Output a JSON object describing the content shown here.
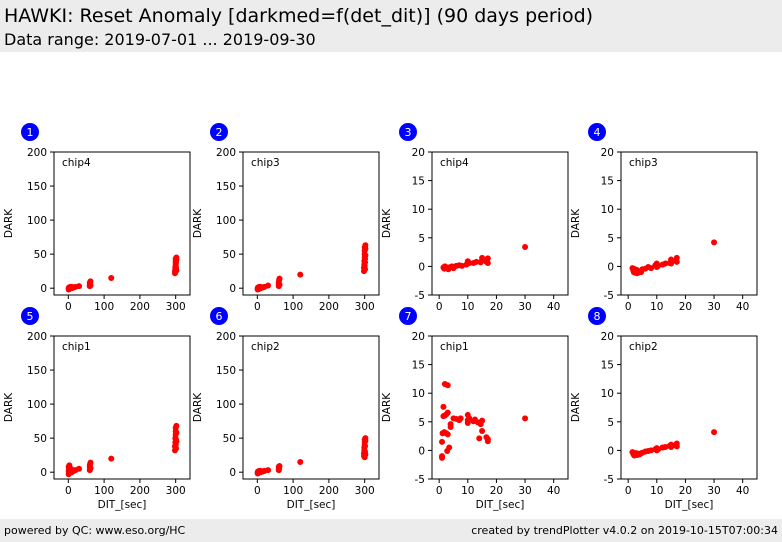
{
  "header": {
    "title": "HAWKI: Reset Anomaly [darkmed=f(det_dit)] (90 days period)",
    "subtitle": "Data range: 2019-07-01 ... 2019-09-30"
  },
  "footer": {
    "left": "powered by QC: www.eso.org/HC",
    "right": "created by trendPlotter v4.0.2 on 2019-10-15T07:00:34"
  },
  "colors": {
    "marker": "#ff0000",
    "badge": "#0000ff",
    "header_bg": "#ececec"
  },
  "chart_data": [
    {
      "id": 1,
      "type": "scatter",
      "label": "chip4",
      "ylabel": "DARK",
      "xlabel": "",
      "xlim": [
        -40,
        340
      ],
      "ylim": [
        -10,
        200
      ],
      "xticks": [
        0,
        100,
        200,
        300
      ],
      "yticks": [
        0,
        50,
        100,
        150,
        200
      ],
      "show_xticklabels": true,
      "x": [
        1,
        1,
        2,
        3,
        3,
        5,
        5,
        10,
        10,
        15,
        20,
        30,
        60,
        60,
        60,
        61,
        62,
        62,
        120,
        298,
        298,
        299,
        299,
        300,
        300,
        300,
        300,
        301,
        301,
        302,
        302,
        302
      ],
      "y": [
        -2,
        0,
        1,
        -1,
        1,
        0,
        2,
        0,
        2,
        1,
        2,
        3,
        3,
        5,
        8,
        6,
        4,
        10,
        15,
        22,
        25,
        28,
        31,
        34,
        37,
        40,
        43,
        30,
        38,
        42,
        45,
        26
      ]
    },
    {
      "id": 2,
      "type": "scatter",
      "label": "chip3",
      "ylabel": "DARK",
      "xlabel": "",
      "xlim": [
        -40,
        340
      ],
      "ylim": [
        -10,
        200
      ],
      "xticks": [
        0,
        100,
        200,
        300
      ],
      "yticks": [
        0,
        50,
        100,
        150,
        200
      ],
      "show_xticklabels": true,
      "x": [
        1,
        1,
        2,
        3,
        3,
        5,
        5,
        10,
        10,
        15,
        20,
        30,
        60,
        60,
        60,
        61,
        62,
        62,
        120,
        298,
        298,
        299,
        299,
        300,
        300,
        300,
        300,
        301,
        301,
        302,
        302,
        302,
        300,
        301
      ],
      "y": [
        -2,
        0,
        1,
        -1,
        1,
        -1,
        2,
        0,
        2,
        1,
        2,
        4,
        3,
        6,
        9,
        12,
        5,
        14,
        20,
        25,
        30,
        35,
        40,
        45,
        50,
        55,
        60,
        28,
        38,
        48,
        58,
        63,
        33,
        43
      ]
    },
    {
      "id": 3,
      "type": "scatter",
      "label": "chip4",
      "ylabel": "DARK",
      "xlabel": "",
      "xlim": [
        -2.5,
        45
      ],
      "ylim": [
        -5,
        20
      ],
      "xticks": [
        0,
        10,
        20,
        30,
        40
      ],
      "yticks": [
        -5,
        0,
        5,
        10,
        15,
        20
      ],
      "show_xticklabels": true,
      "x": [
        1.5,
        1.8,
        2,
        2.2,
        2.5,
        3,
        3.2,
        4,
        4.5,
        5,
        6,
        7,
        8,
        9.5,
        10,
        10,
        10.5,
        12,
        13,
        14.5,
        15,
        15,
        16.5,
        17,
        17,
        30
      ],
      "y": [
        -0.2,
        -0.4,
        0,
        -0.1,
        -0.3,
        -0.2,
        -0.5,
        -0.1,
        0,
        -0.3,
        0.1,
        0.2,
        0.1,
        0.3,
        0.5,
        0.9,
        0.6,
        0.6,
        0.8,
        0.7,
        1.1,
        1.5,
        0.8,
        1.4,
        0.6,
        3.4
      ]
    },
    {
      "id": 4,
      "type": "scatter",
      "label": "chip3",
      "ylabel": "DARK",
      "xlabel": "",
      "xlim": [
        -2.5,
        45
      ],
      "ylim": [
        -5,
        20
      ],
      "xticks": [
        0,
        10,
        20,
        30,
        40
      ],
      "yticks": [
        -5,
        0,
        5,
        10,
        15,
        20
      ],
      "show_xticklabels": true,
      "x": [
        1.5,
        1.8,
        2,
        2,
        2.2,
        2.5,
        3,
        3.2,
        3.5,
        4,
        4.5,
        5,
        6,
        7,
        8,
        9.5,
        10,
        10,
        10.5,
        12,
        13,
        14.5,
        15,
        15,
        16.5,
        17,
        17,
        30
      ],
      "y": [
        -0.3,
        -0.7,
        -1.0,
        -0.4,
        -0.9,
        -1.1,
        -0.6,
        -1.2,
        -0.8,
        -0.9,
        -1.0,
        -0.5,
        -0.4,
        -0.1,
        -0.3,
        0.2,
        0.5,
        -0.1,
        0.1,
        0.3,
        0.5,
        0.6,
        1.2,
        0.5,
        1.0,
        1.5,
        0.8,
        4.2
      ]
    },
    {
      "id": 5,
      "type": "scatter",
      "label": "chip1",
      "ylabel": "DARK",
      "xlabel": "DIT_[sec]",
      "xlim": [
        -40,
        340
      ],
      "ylim": [
        -10,
        200
      ],
      "xticks": [
        0,
        100,
        200,
        300
      ],
      "yticks": [
        0,
        50,
        100,
        150,
        200
      ],
      "show_xticklabels": true,
      "x": [
        1,
        1,
        1,
        2,
        2,
        3,
        3,
        5,
        5,
        8,
        10,
        10,
        15,
        20,
        30,
        60,
        60,
        60,
        61,
        62,
        62,
        120,
        298,
        298,
        299,
        299,
        300,
        300,
        300,
        300,
        301,
        301,
        302,
        302,
        302
      ],
      "y": [
        -3,
        2,
        8,
        -1,
        5,
        0,
        10,
        2,
        6,
        1,
        0,
        4,
        2,
        3,
        5,
        3,
        7,
        10,
        12,
        6,
        14,
        20,
        32,
        38,
        44,
        50,
        55,
        60,
        65,
        40,
        35,
        48,
        58,
        68,
        45
      ]
    },
    {
      "id": 6,
      "type": "scatter",
      "label": "chip2",
      "ylabel": "DARK",
      "xlabel": "DIT_[sec]",
      "xlim": [
        -40,
        340
      ],
      "ylim": [
        -10,
        200
      ],
      "xticks": [
        0,
        100,
        200,
        300
      ],
      "yticks": [
        0,
        50,
        100,
        150,
        200
      ],
      "show_xticklabels": true,
      "x": [
        1,
        1,
        2,
        3,
        3,
        5,
        5,
        10,
        10,
        15,
        20,
        30,
        60,
        60,
        60,
        61,
        62,
        120,
        298,
        298,
        299,
        299,
        300,
        300,
        300,
        300,
        301,
        301,
        302,
        302,
        302
      ],
      "y": [
        -2,
        0,
        1,
        -1,
        1,
        0,
        2,
        0,
        2,
        1,
        2,
        3,
        3,
        5,
        8,
        6,
        9,
        15,
        24,
        28,
        32,
        36,
        40,
        44,
        48,
        22,
        30,
        38,
        46,
        50,
        26
      ]
    },
    {
      "id": 7,
      "type": "scatter",
      "label": "chip1",
      "ylabel": "DARK",
      "xlabel": "DIT_[sec]",
      "xlim": [
        -2.5,
        45
      ],
      "ylim": [
        -5,
        20
      ],
      "xticks": [
        0,
        10,
        20,
        30,
        40
      ],
      "yticks": [
        -5,
        0,
        5,
        10,
        15,
        20
      ],
      "show_xticklabels": true,
      "x": [
        1,
        1,
        1,
        1.2,
        1.5,
        1.5,
        1.8,
        2,
        2,
        2.5,
        2.5,
        2.8,
        3,
        3,
        3,
        3.5,
        4,
        4,
        5,
        6,
        7,
        7.5,
        10,
        10,
        10,
        10.5,
        12,
        12.5,
        13.5,
        14,
        14.5,
        15,
        15,
        16.5,
        17,
        17,
        30
      ],
      "y": [
        -1.0,
        -1.3,
        1.5,
        3.0,
        7.6,
        6.0,
        3.2,
        6.1,
        11.6,
        6.3,
        3.0,
        -0.1,
        11.4,
        6.6,
        2.8,
        0.5,
        4.1,
        4.6,
        5.6,
        5.5,
        5.3,
        5.6,
        4.8,
        5.3,
        6.2,
        5.6,
        5.1,
        5.4,
        4.9,
        2.1,
        4.6,
        5.2,
        3.4,
        2.3,
        1.6,
        2.0,
        5.6
      ]
    },
    {
      "id": 8,
      "type": "scatter",
      "label": "chip2",
      "ylabel": "DARK",
      "xlabel": "DIT_[sec]",
      "xlim": [
        -2.5,
        45
      ],
      "ylim": [
        -5,
        20
      ],
      "xticks": [
        0,
        10,
        20,
        30,
        40
      ],
      "yticks": [
        -5,
        0,
        5,
        10,
        15,
        20
      ],
      "show_xticklabels": true,
      "x": [
        1.5,
        1.8,
        2,
        2,
        2.2,
        2.5,
        3,
        3.2,
        3.5,
        4,
        4.5,
        5,
        6,
        7,
        8,
        9.5,
        10,
        10,
        10.5,
        12,
        13,
        14.5,
        15,
        15,
        16.5,
        17,
        17,
        30
      ],
      "y": [
        -0.3,
        -0.6,
        -0.8,
        -0.4,
        -0.9,
        -0.7,
        -0.5,
        -0.8,
        -0.6,
        -0.7,
        -0.5,
        -0.4,
        -0.2,
        -0.1,
        0.0,
        0.2,
        0.4,
        0.0,
        0.2,
        0.5,
        0.6,
        0.8,
        1.0,
        0.6,
        0.9,
        1.2,
        0.7,
        3.2
      ]
    }
  ]
}
